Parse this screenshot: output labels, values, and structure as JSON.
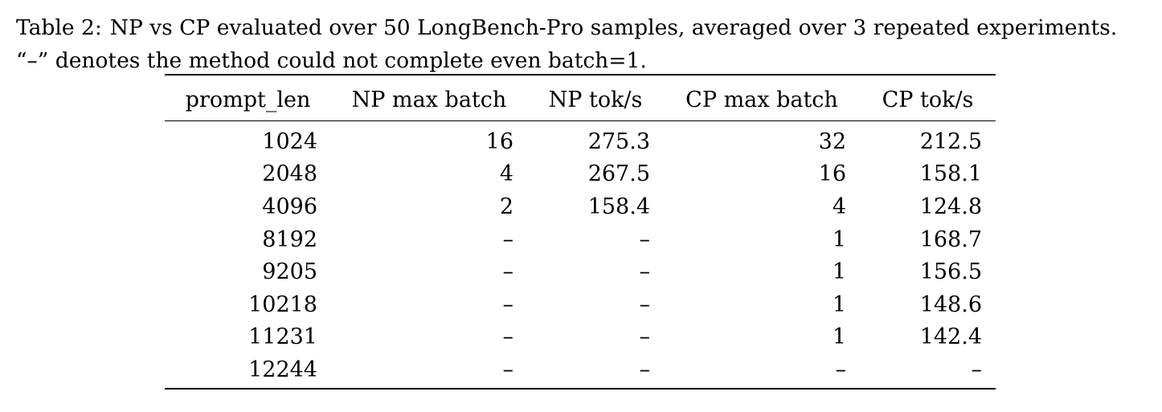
{
  "caption": {
    "label": "Table 2:",
    "line1": "NP vs CP evaluated over 50 LongBench-Pro samples, averaged over 3 repeated experiments.",
    "line2": "“–” denotes the method could not complete even batch=1."
  },
  "table": {
    "headers": [
      "prompt_len",
      "NP max batch",
      "NP tok/s",
      "CP max batch",
      "CP tok/s"
    ],
    "rows": [
      [
        "1024",
        "16",
        "275.3",
        "32",
        "212.5"
      ],
      [
        "2048",
        "4",
        "267.5",
        "16",
        "158.1"
      ],
      [
        "4096",
        "2",
        "158.4",
        "4",
        "124.8"
      ],
      [
        "8192",
        "–",
        "–",
        "1",
        "168.7"
      ],
      [
        "9205",
        "–",
        "–",
        "1",
        "156.5"
      ],
      [
        "10218",
        "–",
        "–",
        "1",
        "148.6"
      ],
      [
        "11231",
        "–",
        "–",
        "1",
        "142.4"
      ],
      [
        "12244",
        "–",
        "–",
        "–",
        "–"
      ]
    ]
  }
}
